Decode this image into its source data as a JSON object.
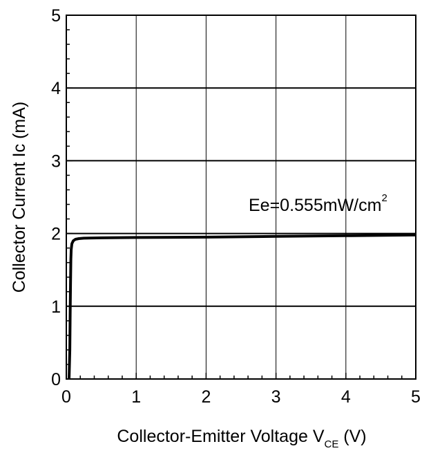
{
  "chart_data": {
    "type": "line",
    "ylabel": "Collector Current Ic (mA)",
    "xlabel": {
      "main": "Collector-Emitter Voltage V",
      "subscript": "CE",
      "unit": " (V)"
    },
    "xlim": [
      0,
      5
    ],
    "ylim": [
      0,
      5
    ],
    "x_ticks": [
      "0",
      "1",
      "2",
      "3",
      "4",
      "5"
    ],
    "y_ticks": [
      "0",
      "1",
      "2",
      "3",
      "4",
      "5"
    ],
    "grid": true,
    "annotation": {
      "text": "Ee=0.555mW/cm",
      "superscript": "2"
    },
    "series": [
      {
        "x": [
          0.04,
          0.05,
          0.055,
          0.06,
          0.065,
          0.07,
          0.08,
          0.1,
          0.13,
          0.18,
          0.25,
          0.5,
          1.0,
          2.0,
          3.0,
          4.0,
          5.0
        ],
        "y": [
          0.0,
          0.4,
          0.9,
          1.3,
          1.65,
          1.78,
          1.86,
          1.9,
          1.92,
          1.93,
          1.935,
          1.94,
          1.945,
          1.95,
          1.96,
          1.97,
          1.98
        ]
      }
    ],
    "colors": {
      "line": "#000000",
      "grid": "#000000"
    }
  }
}
